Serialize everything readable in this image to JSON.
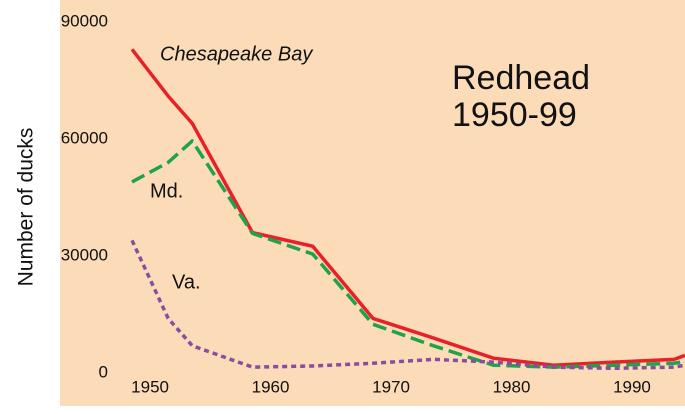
{
  "chart_data": {
    "type": "line",
    "title": "Redhead",
    "subtitle": "1950-99",
    "y_label": "Number of ducks",
    "background": "#fcdcb8",
    "x": [
      1948.5,
      1951.5,
      1953.5,
      1958.5,
      1963.5,
      1968.5,
      1973.5,
      1978.5,
      1983.5,
      1988.5,
      1993.5,
      1994.4
    ],
    "series": [
      {
        "name": "Chesapeake Bay",
        "color": "#e8202a",
        "style": "solid",
        "values": [
          83000,
          71000,
          64000,
          36000,
          32500,
          14000,
          9000,
          3800,
          2000,
          2800,
          3500,
          4500
        ]
      },
      {
        "name": "Md.",
        "color": "#1fa34a",
        "style": "dashed",
        "values": [
          49000,
          54000,
          59500,
          35800,
          30500,
          12500,
          7000,
          2000,
          1500,
          2000,
          2500,
          3000
        ]
      },
      {
        "name": "Va.",
        "color": "#8a4c9e",
        "style": "dotted",
        "values": [
          34000,
          14000,
          7000,
          1500,
          1800,
          2500,
          3500,
          2800,
          1500,
          1200,
          1500,
          2000
        ]
      }
    ],
    "xlim": [
      1948,
      1994.4
    ],
    "xticks": [
      1950,
      1960,
      1970,
      1980,
      1990
    ],
    "ylim": [
      0,
      90000
    ],
    "yticks": [
      0,
      30000,
      60000,
      90000
    ],
    "grid": false
  }
}
